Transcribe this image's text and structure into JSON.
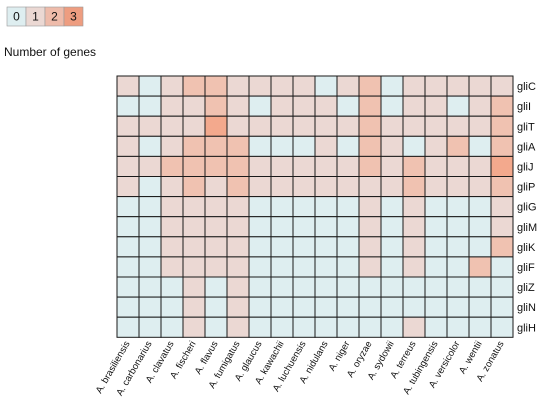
{
  "chart_data": {
    "type": "heatmap",
    "legend": {
      "title": "Number of genes",
      "levels": [
        "0",
        "1",
        "2",
        "3"
      ],
      "colors": [
        "#deeef0",
        "#ebd8d3",
        "#eebbaa",
        "#ee9d80"
      ],
      "placement": "top-left"
    },
    "color_scale": [
      "#deeef0",
      "#ebd8d3",
      "#f0c2b1",
      "#f3a98d",
      "#f28e6e"
    ],
    "columns": [
      "A. brasiliensis",
      "A. carbonarius",
      "A. clavatus",
      "A. fischeri",
      "A. flavus",
      "A. fumigatus",
      "A. glaucus",
      "A. kawachii",
      "A. luchuensis",
      "A. nidulans",
      "A. niger",
      "A. oryzae",
      "A. sydowii",
      "A. terreus",
      "A. tubingensis",
      "A. versicolor",
      "A. wentii",
      "A. zonatus"
    ],
    "rows": [
      "gliC",
      "gliI",
      "gliT",
      "gliA",
      "gliJ",
      "gliP",
      "gliG",
      "gliM",
      "gliK",
      "gliF",
      "gliZ",
      "gliN",
      "gliH"
    ],
    "values": [
      [
        1,
        0,
        1,
        2,
        2,
        1,
        1,
        1,
        1,
        0,
        1,
        2,
        0,
        1,
        1,
        1,
        1,
        1
      ],
      [
        0,
        0,
        1,
        1,
        2,
        1,
        0,
        1,
        1,
        1,
        0,
        2,
        0,
        1,
        1,
        0,
        1,
        2
      ],
      [
        1,
        1,
        1,
        1,
        3,
        1,
        1,
        1,
        1,
        1,
        1,
        2,
        1,
        1,
        1,
        1,
        1,
        2
      ],
      [
        1,
        0,
        1,
        2,
        2,
        2,
        0,
        0,
        0,
        1,
        0,
        2,
        1,
        0,
        1,
        2,
        0,
        2
      ],
      [
        1,
        1,
        2,
        2,
        2,
        2,
        1,
        1,
        1,
        1,
        1,
        2,
        1,
        2,
        1,
        1,
        1,
        3
      ],
      [
        1,
        0,
        1,
        2,
        1,
        2,
        1,
        1,
        1,
        1,
        1,
        1,
        1,
        2,
        1,
        1,
        1,
        2
      ],
      [
        0,
        0,
        1,
        1,
        1,
        1,
        0,
        0,
        0,
        0,
        0,
        1,
        0,
        1,
        0,
        0,
        0,
        1
      ],
      [
        0,
        0,
        1,
        1,
        1,
        1,
        0,
        0,
        0,
        0,
        0,
        1,
        0,
        1,
        0,
        0,
        0,
        1
      ],
      [
        0,
        0,
        1,
        1,
        1,
        1,
        0,
        0,
        0,
        0,
        0,
        1,
        0,
        1,
        0,
        0,
        0,
        2
      ],
      [
        0,
        0,
        1,
        1,
        1,
        1,
        0,
        0,
        0,
        0,
        0,
        1,
        0,
        1,
        0,
        0,
        2,
        0
      ],
      [
        0,
        0,
        0,
        1,
        0,
        1,
        0,
        0,
        0,
        0,
        0,
        0,
        0,
        0,
        0,
        0,
        0,
        0
      ],
      [
        0,
        0,
        0,
        1,
        0,
        1,
        0,
        0,
        0,
        0,
        0,
        0,
        0,
        0,
        0,
        0,
        0,
        0
      ],
      [
        0,
        0,
        0,
        1,
        0,
        1,
        0,
        0,
        0,
        0,
        0,
        0,
        0,
        1,
        0,
        0,
        0,
        0
      ]
    ],
    "grid": true,
    "cell_border_color": "#1a1a1a"
  }
}
